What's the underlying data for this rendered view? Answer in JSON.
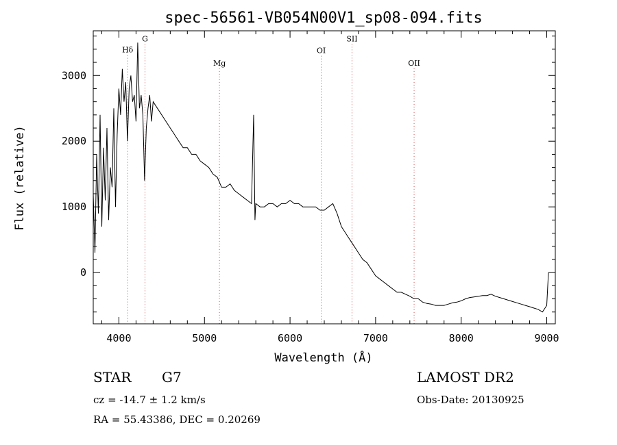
{
  "chart_data": {
    "type": "line",
    "title": "spec-56561-VB054N00V1_sp08-094.fits",
    "xlabel": "Wavelength (Å)",
    "ylabel": "Flux (relative)",
    "xlim": [
      3700,
      9100
    ],
    "ylim": [
      -780,
      3680
    ],
    "x_ticks": [
      4000,
      5000,
      6000,
      7000,
      8000,
      9000
    ],
    "y_ticks": [
      0,
      1000,
      2000,
      3000
    ],
    "grid": false,
    "line_color": "#000000",
    "marker_color": "#d04040",
    "series": [
      {
        "points": [
          [
            3700,
            1200
          ],
          [
            3720,
            300
          ],
          [
            3740,
            1800
          ],
          [
            3760,
            900
          ],
          [
            3780,
            2400
          ],
          [
            3800,
            700
          ],
          [
            3820,
            1900
          ],
          [
            3840,
            1100
          ],
          [
            3860,
            2200
          ],
          [
            3880,
            800
          ],
          [
            3900,
            1600
          ],
          [
            3920,
            1300
          ],
          [
            3940,
            2500
          ],
          [
            3960,
            1000
          ],
          [
            3980,
            2100
          ],
          [
            4000,
            2800
          ],
          [
            4020,
            2400
          ],
          [
            4040,
            3100
          ],
          [
            4060,
            2600
          ],
          [
            4080,
            2900
          ],
          [
            4100,
            2000
          ],
          [
            4120,
            2800
          ],
          [
            4140,
            3000
          ],
          [
            4160,
            2600
          ],
          [
            4180,
            2700
          ],
          [
            4200,
            2300
          ],
          [
            4220,
            3500
          ],
          [
            4240,
            2500
          ],
          [
            4260,
            2700
          ],
          [
            4280,
            2400
          ],
          [
            4300,
            1400
          ],
          [
            4320,
            2200
          ],
          [
            4340,
            2500
          ],
          [
            4360,
            2700
          ],
          [
            4380,
            2300
          ],
          [
            4400,
            2600
          ],
          [
            4450,
            2500
          ],
          [
            4500,
            2400
          ],
          [
            4550,
            2300
          ],
          [
            4600,
            2200
          ],
          [
            4650,
            2100
          ],
          [
            4700,
            2000
          ],
          [
            4750,
            1900
          ],
          [
            4800,
            1900
          ],
          [
            4850,
            1800
          ],
          [
            4900,
            1800
          ],
          [
            4950,
            1700
          ],
          [
            5000,
            1650
          ],
          [
            5050,
            1600
          ],
          [
            5100,
            1500
          ],
          [
            5150,
            1450
          ],
          [
            5200,
            1300
          ],
          [
            5250,
            1300
          ],
          [
            5300,
            1350
          ],
          [
            5350,
            1250
          ],
          [
            5400,
            1200
          ],
          [
            5450,
            1150
          ],
          [
            5500,
            1100
          ],
          [
            5550,
            1050
          ],
          [
            5575,
            2400
          ],
          [
            5590,
            800
          ],
          [
            5600,
            1050
          ],
          [
            5650,
            1000
          ],
          [
            5700,
            1000
          ],
          [
            5750,
            1050
          ],
          [
            5800,
            1050
          ],
          [
            5850,
            1000
          ],
          [
            5900,
            1050
          ],
          [
            5950,
            1050
          ],
          [
            6000,
            1100
          ],
          [
            6050,
            1050
          ],
          [
            6100,
            1050
          ],
          [
            6150,
            1000
          ],
          [
            6200,
            1000
          ],
          [
            6250,
            1000
          ],
          [
            6300,
            1000
          ],
          [
            6350,
            950
          ],
          [
            6400,
            950
          ],
          [
            6450,
            1000
          ],
          [
            6500,
            1050
          ],
          [
            6550,
            900
          ],
          [
            6600,
            700
          ],
          [
            6650,
            600
          ],
          [
            6700,
            500
          ],
          [
            6750,
            400
          ],
          [
            6800,
            300
          ],
          [
            6850,
            200
          ],
          [
            6900,
            150
          ],
          [
            6950,
            50
          ],
          [
            7000,
            -50
          ],
          [
            7050,
            -100
          ],
          [
            7100,
            -150
          ],
          [
            7150,
            -200
          ],
          [
            7200,
            -250
          ],
          [
            7250,
            -300
          ],
          [
            7300,
            -300
          ],
          [
            7350,
            -330
          ],
          [
            7400,
            -360
          ],
          [
            7450,
            -400
          ],
          [
            7500,
            -400
          ],
          [
            7550,
            -450
          ],
          [
            7600,
            -470
          ],
          [
            7650,
            -480
          ],
          [
            7700,
            -500
          ],
          [
            7750,
            -500
          ],
          [
            7800,
            -500
          ],
          [
            7850,
            -480
          ],
          [
            7900,
            -460
          ],
          [
            7950,
            -450
          ],
          [
            8000,
            -430
          ],
          [
            8050,
            -400
          ],
          [
            8100,
            -380
          ],
          [
            8150,
            -370
          ],
          [
            8200,
            -360
          ],
          [
            8250,
            -350
          ],
          [
            8300,
            -350
          ],
          [
            8350,
            -330
          ],
          [
            8400,
            -360
          ],
          [
            8450,
            -380
          ],
          [
            8500,
            -400
          ],
          [
            8550,
            -420
          ],
          [
            8600,
            -440
          ],
          [
            8650,
            -460
          ],
          [
            8700,
            -480
          ],
          [
            8750,
            -500
          ],
          [
            8800,
            -520
          ],
          [
            8850,
            -540
          ],
          [
            8900,
            -560
          ],
          [
            8950,
            -600
          ],
          [
            9000,
            -500
          ],
          [
            9020,
            0
          ]
        ]
      }
    ],
    "line_markers": [
      {
        "label": "Hδ",
        "x": 4102,
        "label_y": 3350
      },
      {
        "label": "G",
        "x": 4305,
        "label_y": 3520
      },
      {
        "label": "Mg",
        "x": 5175,
        "label_y": 3150
      },
      {
        "label": "OI",
        "x": 6364,
        "label_y": 3340
      },
      {
        "label": "SII",
        "x": 6724,
        "label_y": 3520
      },
      {
        "label": "OII",
        "x": 7450,
        "label_y": 3150
      }
    ]
  },
  "info": {
    "class_label": "STAR",
    "subclass": "G7",
    "survey": "LAMOST DR2",
    "cz": "cz = -14.7 ± 1.2 km/s",
    "obs_date": "Obs-Date: 20130925",
    "coords": "RA =  55.43386, DEC =   0.20269"
  }
}
